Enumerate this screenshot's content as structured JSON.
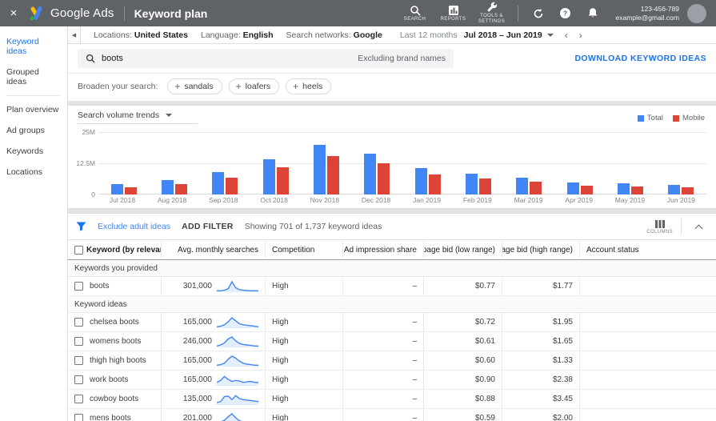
{
  "colors": {
    "topbar_bg": "#5f6368",
    "accent_blue": "#1a73e8",
    "bar_total": "#4285f4",
    "bar_mobile": "#db4437",
    "spark_line": "#4285f4",
    "spark_fill": "#e3eefc",
    "logo_blue": "#4285f4",
    "logo_yellow": "#fbbc04",
    "logo_green": "#34a853"
  },
  "topbar": {
    "close_label": "×",
    "brand": "Google Ads",
    "page_title": "Keyword plan",
    "icon_buttons": [
      {
        "icon": "search-icon",
        "label": "SEARCH"
      },
      {
        "icon": "reports-icon",
        "label": "REPORTS"
      },
      {
        "icon": "tools-icon",
        "label": "TOOLS & SETTINGS"
      }
    ],
    "account_id": "123-456-789",
    "account_email": "example@gmail.com"
  },
  "sidebar": {
    "items": [
      {
        "label": "Keyword ideas",
        "selected": true
      },
      {
        "label": "Grouped ideas"
      },
      {
        "divider": true
      },
      {
        "label": "Plan overview"
      },
      {
        "label": "Ad groups"
      },
      {
        "label": "Keywords"
      },
      {
        "label": "Locations"
      }
    ]
  },
  "filterbar": {
    "items": [
      {
        "label": "Locations:",
        "value": "United States"
      },
      {
        "label": "Language:",
        "value": "English"
      },
      {
        "label": "Search networks:",
        "value": "Google"
      }
    ],
    "period_label": "Last 12 months",
    "period_value": "Jul 2018 – Jun 2019",
    "prev_chevron": "‹",
    "next_chevron": "›"
  },
  "search": {
    "query": "boots",
    "note": "Excluding brand names",
    "download_label": "DOWNLOAD KEYWORD IDEAS"
  },
  "broaden": {
    "label": "Broaden your search:",
    "plus": "+",
    "chips": [
      "sandals",
      "loafers",
      "heels"
    ]
  },
  "chart": {
    "title": "Search volume trends",
    "y_ticks": [
      "25M",
      "12.5M",
      "0"
    ]
  },
  "chart_data": {
    "type": "bar",
    "title": "Search volume trends",
    "categories": [
      "Jul 2018",
      "Aug 2018",
      "Sep 2018",
      "Oct 2018",
      "Nov 2018",
      "Dec 2018",
      "Jan 2019",
      "Feb 2019",
      "Mar 2019",
      "Apr 2019",
      "May 2019",
      "Jun 2019"
    ],
    "series": [
      {
        "name": "Total",
        "values": [
          4.2,
          5.8,
          9.0,
          14.0,
          20.0,
          16.3,
          10.6,
          8.2,
          6.6,
          4.8,
          4.6,
          3.8
        ]
      },
      {
        "name": "Mobile",
        "values": [
          3.0,
          4.3,
          6.6,
          10.8,
          15.5,
          12.5,
          8.1,
          6.3,
          5.2,
          3.6,
          3.3,
          3.0
        ]
      }
    ],
    "xlabel": "",
    "ylabel": "",
    "ylim": [
      0,
      25
    ],
    "y_unit": "M",
    "legend_position": "top-right",
    "grid": true
  },
  "table_toolbar": {
    "exclude_link": "Exclude adult ideas",
    "add_filter": "ADD FILTER",
    "showing": "Showing 701 of 1,737 keyword ideas",
    "columns_label": "COLUMNS"
  },
  "table": {
    "sort_icon": "↓",
    "columns": [
      {
        "label": "Keyword (by relevance)",
        "align": "left"
      },
      {
        "label": "Avg. monthly searches",
        "align": "right"
      },
      {
        "label": "Competition",
        "align": "left"
      },
      {
        "label": "Ad impression share",
        "align": "right"
      },
      {
        "label": "Top of page bid (low range)",
        "align": "right"
      },
      {
        "label": "Top of page bid (high range)",
        "align": "right"
      },
      {
        "label": "Account status",
        "align": "left"
      }
    ],
    "sections": [
      {
        "label": "Keywords you provided",
        "rows": [
          {
            "keyword": "boots",
            "searches": "301,000",
            "competition": "High",
            "ad_share": "–",
            "bid_low": "$0.77",
            "bid_high": "$1.77",
            "account_status": "",
            "spark": [
              1,
              1,
              1.5,
              3,
              10,
              4,
              2,
              1.5,
              1.2,
              1,
              1,
              1
            ]
          }
        ]
      },
      {
        "label": "Keyword ideas",
        "rows": [
          {
            "keyword": "chelsea boots",
            "searches": "165,000",
            "competition": "High",
            "ad_share": "–",
            "bid_low": "$0.72",
            "bid_high": "$1.95",
            "account_status": "",
            "spark": [
              1,
              1.5,
              3,
              6,
              10,
              7,
              4,
              3,
              2.5,
              2,
              1.5,
              1
            ]
          },
          {
            "keyword": "womens boots",
            "searches": "246,000",
            "competition": "High",
            "ad_share": "–",
            "bid_low": "$0.61",
            "bid_high": "$1.65",
            "account_status": "",
            "spark": [
              1,
              2,
              4,
              8,
              10,
              6,
              3.5,
              2.5,
              2,
              1.5,
              1,
              1
            ]
          },
          {
            "keyword": "thigh high boots",
            "searches": "165,000",
            "competition": "High",
            "ad_share": "–",
            "bid_low": "$0.60",
            "bid_high": "$1.33",
            "account_status": "",
            "spark": [
              1,
              1.5,
              3,
              7,
              10,
              8,
              5,
              3,
              2,
              1.5,
              1,
              1
            ]
          },
          {
            "keyword": "work boots",
            "searches": "165,000",
            "competition": "High",
            "ad_share": "–",
            "bid_low": "$0.90",
            "bid_high": "$2.38",
            "account_status": "",
            "spark": [
              3,
              5,
              9,
              6,
              4,
              5,
              4.5,
              3,
              3.5,
              4,
              3,
              3
            ]
          },
          {
            "keyword": "cowboy boots",
            "searches": "135,000",
            "competition": "High",
            "ad_share": "–",
            "bid_low": "$0.88",
            "bid_high": "$3.45",
            "account_status": "",
            "spark": [
              2,
              3,
              8,
              8.5,
              5,
              9,
              6,
              5,
              4.5,
              4,
              3.5,
              3
            ]
          },
          {
            "keyword": "mens boots",
            "searches": "201,000",
            "competition": "High",
            "ad_share": "–",
            "bid_low": "$0.59",
            "bid_high": "$2.00",
            "account_status": "",
            "spark": [
              1,
              2,
              3.5,
              7,
              10,
              6,
              3,
              2,
              1.5,
              1.2,
              1,
              1
            ]
          }
        ]
      }
    ]
  }
}
